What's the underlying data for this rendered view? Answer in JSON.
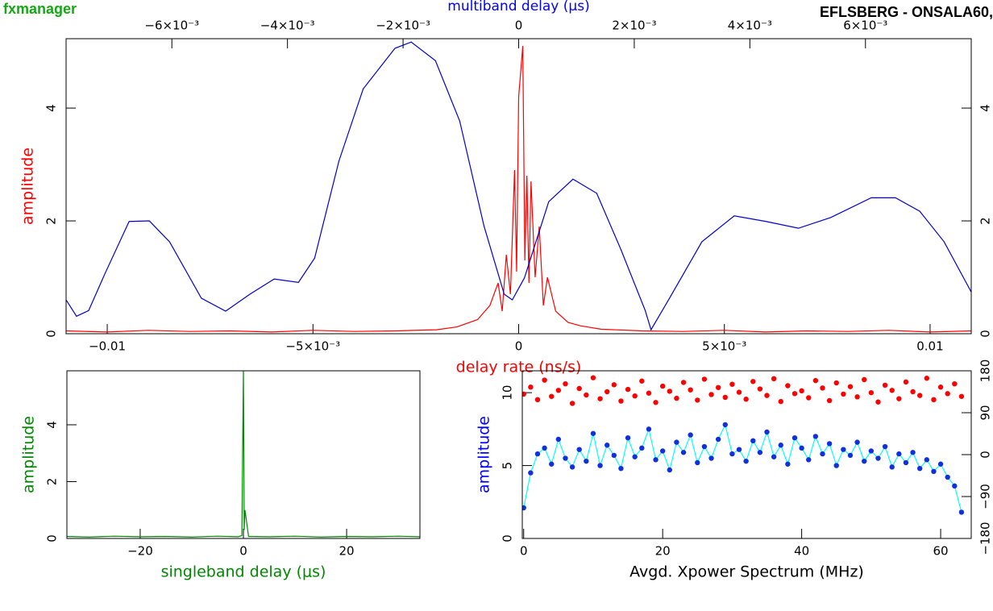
{
  "header": {
    "left": "fxmanager",
    "right": "EFLSBERG - ONSALA60,"
  },
  "chart_data": [
    {
      "type": "line",
      "xlabel": "delay rate (ns/s)",
      "xlabel_color": "#ff0000",
      "x2label": "multiband delay (μs)",
      "x2label_color": "#0000ff",
      "ylabel": "amplitude",
      "ylabel_color": "#ff0000",
      "xlim": [
        -0.011,
        0.011
      ],
      "xticks": [
        {
          "value": -0.01,
          "label": "−0.01"
        },
        {
          "value": -0.005,
          "label": "−5×10⁻³"
        },
        0,
        {
          "value": 0.005,
          "label": "5×10⁻³"
        },
        0.01
      ],
      "x2lim": [
        -0.00783,
        0.00783
      ],
      "x2ticks": [
        {
          "value": -0.006,
          "label": "−6×10⁻³"
        },
        {
          "value": -0.004,
          "label": "−4×10⁻³"
        },
        {
          "value": -0.002,
          "label": "−2×10⁻³"
        },
        0,
        {
          "value": 0.002,
          "label": "2×10⁻³"
        },
        {
          "value": 0.004,
          "label": "4×10⁻³"
        },
        {
          "value": 0.006,
          "label": "6×10⁻³"
        }
      ],
      "ylim": [
        0,
        5.23
      ],
      "yticks": [
        0,
        2,
        4
      ],
      "y2lim": [
        0,
        5.23
      ],
      "y2ticks": [
        0,
        2,
        4
      ],
      "series": [
        {
          "color": "#ff0000",
          "x": [
            -0.011,
            -0.01,
            -0.009,
            -0.008,
            -0.007,
            -0.006,
            -0.005,
            -0.004,
            -0.003,
            -0.002,
            -0.0015,
            -0.001,
            -0.0007,
            -0.0005,
            -0.0004,
            -0.0003,
            -0.0002,
            -0.0001,
            -5e-05,
            0,
            0.0001,
            0.00015,
            0.0002,
            0.00025,
            0.0003,
            0.0004,
            0.0005,
            0.0006,
            0.0007,
            0.0009,
            0.0012,
            0.0015,
            0.002,
            0.003,
            0.004,
            0.005,
            0.006,
            0.007,
            0.008,
            0.009,
            0.01,
            0.011
          ],
          "values": [
            0.05,
            0.03,
            0.06,
            0.04,
            0.05,
            0.03,
            0.06,
            0.04,
            0.05,
            0.07,
            0.12,
            0.25,
            0.5,
            0.9,
            0.4,
            1.4,
            0.7,
            2.9,
            1.1,
            4.2,
            5.1,
            1.3,
            2.8,
            0.9,
            2.7,
            1.0,
            1.9,
            0.5,
            1.0,
            0.4,
            0.2,
            0.14,
            0.08,
            0.05,
            0.04,
            0.06,
            0.03,
            0.05,
            0.04,
            0.06,
            0.03,
            0.05
          ]
        },
        {
          "color": "#0000cc",
          "axis": "x2",
          "x": [
            -0.00783,
            -0.00765,
            -0.00744,
            -0.00716,
            -0.00674,
            -0.00639,
            -0.00604,
            -0.00549,
            -0.00507,
            -0.00465,
            -0.00423,
            -0.00381,
            -0.00353,
            -0.00311,
            -0.00269,
            -0.00214,
            -0.00186,
            -0.00144,
            -0.00102,
            -0.0006,
            -0.00025,
            -0.00011,
            0.0001,
            0.00052,
            0.00094,
            0.00135,
            0.00177,
            0.00219,
            0.00229,
            0.00261,
            0.00317,
            0.00373,
            0.00428,
            0.00484,
            0.0054,
            0.0061,
            0.00652,
            0.00694,
            0.00736,
            0.00783
          ],
          "values": [
            0.6,
            0.31,
            0.41,
            1.06,
            1.99,
            2.0,
            1.63,
            0.63,
            0.4,
            0.7,
            0.97,
            0.91,
            1.34,
            3.06,
            4.34,
            5.06,
            5.17,
            4.84,
            3.77,
            1.91,
            0.7,
            0.6,
            0.99,
            2.34,
            2.74,
            2.49,
            1.49,
            0.41,
            0.07,
            0.63,
            1.63,
            2.09,
            1.99,
            1.87,
            2.06,
            2.41,
            2.41,
            2.17,
            1.63,
            0.74
          ]
        }
      ]
    },
    {
      "type": "line",
      "xlabel": "singleband delay (μs)",
      "xlabel_color": "#008800",
      "ylabel": "amplitude",
      "ylabel_color": "#008800",
      "xlim": [
        -34.2,
        34.2
      ],
      "xticks": [
        {
          "value": -20,
          "label": "−20"
        },
        0,
        20
      ],
      "ylim": [
        0,
        5.9
      ],
      "yticks": [
        0,
        2,
        4
      ],
      "series": [
        {
          "color": "#008800",
          "x": [
            -34.2,
            -30,
            -25,
            -20,
            -15,
            -10,
            -5,
            -1,
            -0.3,
            0,
            0.15,
            0.3,
            1,
            5,
            10,
            15,
            20,
            25,
            30,
            34.2
          ],
          "values": [
            0.07,
            0.05,
            0.08,
            0.06,
            0.07,
            0.05,
            0.08,
            0.06,
            0.1,
            5.9,
            0.3,
            1.0,
            0.07,
            0.06,
            0.08,
            0.05,
            0.07,
            0.06,
            0.08,
            0.06
          ]
        }
      ]
    },
    {
      "type": "line",
      "xlabel": "Avgd. Xpower Spectrum (MHz)",
      "xlabel_color": "#000000",
      "ylabel": "amplitude",
      "ylabel_color": "#0000ff",
      "xlim": [
        -0.2,
        64.4
      ],
      "xticks": [
        0,
        20,
        40,
        60
      ],
      "ylim": [
        0,
        11.5
      ],
      "yticks": [
        0,
        5,
        10
      ],
      "y2lim": [
        -180,
        180
      ],
      "y2ticks": [
        {
          "value": -180,
          "label": "−180"
        },
        {
          "value": -90,
          "label": "−90"
        },
        0,
        90,
        180
      ],
      "x": [
        0,
        1,
        2,
        3,
        4,
        5,
        6,
        7,
        8,
        9,
        10,
        11,
        12,
        13,
        14,
        15,
        16,
        17,
        18,
        19,
        20,
        21,
        22,
        23,
        24,
        25,
        26,
        27,
        28,
        29,
        30,
        31,
        32,
        33,
        34,
        35,
        36,
        37,
        38,
        39,
        40,
        41,
        42,
        43,
        44,
        45,
        46,
        47,
        48,
        49,
        50,
        51,
        52,
        53,
        54,
        55,
        56,
        57,
        58,
        59,
        60,
        61,
        62,
        63
      ],
      "series": [
        {
          "color": "#00ffff",
          "marker_color": "#1030e0",
          "values": [
            2.1,
            4.5,
            5.8,
            6.2,
            5.1,
            6.8,
            5.5,
            4.9,
            6.1,
            5.3,
            7.2,
            5.0,
            6.4,
            5.7,
            4.8,
            6.9,
            5.6,
            6.2,
            7.5,
            5.4,
            6.0,
            4.7,
            6.6,
            5.9,
            7.1,
            5.2,
            6.3,
            5.5,
            6.8,
            7.8,
            5.8,
            6.1,
            5.3,
            6.7,
            5.9,
            7.3,
            5.6,
            6.4,
            5.1,
            6.9,
            6.2,
            5.4,
            7.0,
            5.8,
            6.5,
            5.0,
            6.1,
            5.7,
            6.6,
            5.3,
            6.0,
            5.5,
            6.3,
            4.9,
            5.8,
            5.2,
            5.9,
            4.8,
            5.4,
            4.6,
            5.1,
            4.2,
            3.6,
            1.8
          ]
        },
        {
          "axis": "y2",
          "marker_color": "#ff0000",
          "values": [
            130,
            145,
            118,
            160,
            125,
            138,
            152,
            110,
            142,
            128,
            165,
            120,
            135,
            150,
            115,
            140,
            126,
            158,
            132,
            112,
            147,
            136,
            121,
            155,
            139,
            117,
            162,
            129,
            144,
            123,
            151,
            134,
            119,
            157,
            141,
            127,
            163,
            114,
            148,
            131,
            137,
            122,
            159,
            143,
            116,
            154,
            130,
            146,
            124,
            161,
            133,
            113,
            149,
            138,
            120,
            156,
            135,
            127,
            164,
            118,
            145,
            131,
            152,
            125
          ]
        }
      ]
    }
  ]
}
